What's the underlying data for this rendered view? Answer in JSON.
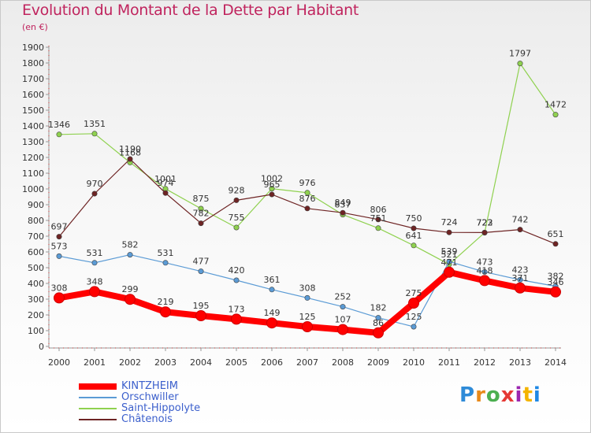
{
  "title": "Evolution du Montant de la Dette par Habitant",
  "subtitle": "(en €)",
  "logo": "Proxiti",
  "chart_data": {
    "type": "line",
    "title": "Evolution du Montant de la Dette par Habitant",
    "subtitle": "(en €)",
    "xlabel": "",
    "ylabel": "",
    "x": [
      2000,
      2001,
      2002,
      2003,
      2004,
      2005,
      2006,
      2007,
      2008,
      2009,
      2010,
      2011,
      2012,
      2013,
      2014
    ],
    "ylim": [
      0,
      1900
    ],
    "yticks": [
      0,
      100,
      200,
      300,
      400,
      500,
      600,
      700,
      800,
      900,
      1000,
      1100,
      1200,
      1300,
      1400,
      1500,
      1600,
      1700,
      1800,
      1900
    ],
    "grid": false,
    "legend_position": "bottom-left",
    "series": [
      {
        "name": "KINTZHEIM",
        "color": "#ff0000",
        "values": [
          308,
          348,
          299,
          219,
          195,
          173,
          149,
          125,
          107,
          86,
          275,
          471,
          418,
          371,
          346
        ],
        "labels": [
          "308",
          "348",
          "299",
          "219",
          "195",
          "173",
          "149",
          "125",
          "107",
          "86",
          "275",
          "471",
          "418",
          "371",
          "346"
        ]
      },
      {
        "name": "Orschwiller",
        "color": "#5b9bd5",
        "values": [
          573,
          531,
          582,
          531,
          477,
          420,
          361,
          308,
          252,
          182,
          125,
          539,
          473,
          423,
          382
        ],
        "labels": [
          "573",
          "531",
          "582",
          "531",
          "477",
          "420",
          "361",
          "308",
          "252",
          "182",
          "125",
          "539",
          "473",
          "423",
          "382"
        ]
      },
      {
        "name": "Saint-Hippolyte",
        "color": "#8fd14f",
        "values": [
          1346,
          1351,
          1168,
          1001,
          875,
          755,
          1002,
          976,
          837,
          751,
          641,
          521,
          722,
          1797,
          1472
        ],
        "labels": [
          "1346",
          "1351",
          "1168",
          "1001",
          "875",
          "755",
          "1002",
          "976",
          "837",
          "751",
          "641",
          "521",
          "722",
          "1797",
          "1472"
        ]
      },
      {
        "name": "Châtenois",
        "color": "#6e2424",
        "values": [
          697,
          970,
          1190,
          974,
          782,
          928,
          965,
          876,
          849,
          806,
          750,
          724,
          723,
          742,
          651
        ],
        "labels": [
          "697",
          "970",
          "1190",
          "974",
          "782",
          "928",
          "965",
          "876",
          "849",
          "806",
          "750",
          "724",
          "723",
          "742",
          "651"
        ]
      }
    ]
  }
}
